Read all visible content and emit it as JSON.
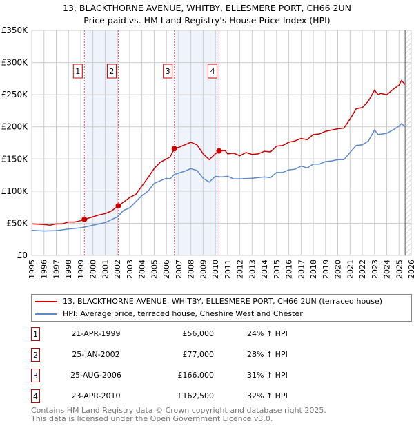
{
  "title_line1": "13, BLACKTHORNE AVENUE, WHITBY, ELLESMERE PORT, CH66 2UN",
  "title_line2": "Price paid vs. HM Land Registry's House Price Index (HPI)",
  "chart_data": {
    "type": "line",
    "xlim": [
      1995,
      2026
    ],
    "ylim": [
      0,
      350000
    ],
    "x_ticks": [
      "1995",
      "1996",
      "1997",
      "1998",
      "1999",
      "2000",
      "2001",
      "2002",
      "2003",
      "2004",
      "2005",
      "2006",
      "2007",
      "2008",
      "2009",
      "2010",
      "2011",
      "2012",
      "2013",
      "2014",
      "2015",
      "2016",
      "2017",
      "2018",
      "2019",
      "2020",
      "2021",
      "2022",
      "2023",
      "2024",
      "2025",
      "2026"
    ],
    "y_ticks": [
      {
        "v": 0,
        "label": "£0"
      },
      {
        "v": 50000,
        "label": "£50K"
      },
      {
        "v": 100000,
        "label": "£100K"
      },
      {
        "v": 150000,
        "label": "£150K"
      },
      {
        "v": 200000,
        "label": "£200K"
      },
      {
        "v": 250000,
        "label": "£250K"
      },
      {
        "v": 300000,
        "label": "£300K"
      },
      {
        "v": 350000,
        "label": "£350K"
      }
    ],
    "series": [
      {
        "name": "13, BLACKTHORNE AVENUE, WHITBY, ELLESMERE PORT, CH66 2UN (terraced house)",
        "color": "#cc0000",
        "x": [
          1995,
          1996,
          1996.5,
          1997,
          1997.5,
          1998,
          1998.5,
          1999,
          1999.3,
          2000,
          2000.5,
          2001,
          2001.5,
          2002.07,
          2002.5,
          2003,
          2003.5,
          2004,
          2004.5,
          2005,
          2005.5,
          2006,
          2006.3,
          2006.65,
          2007,
          2007.5,
          2008,
          2008.5,
          2009,
          2009.5,
          2010,
          2010.3,
          2010.8,
          2011,
          2011.5,
          2012,
          2012.5,
          2013,
          2013.5,
          2014,
          2014.5,
          2015,
          2015.5,
          2016,
          2016.5,
          2017,
          2017.5,
          2018,
          2018.5,
          2019,
          2019.5,
          2020,
          2020.5,
          2021,
          2021.5,
          2022,
          2022.5,
          2023,
          2023.3,
          2023.5,
          2024,
          2024.5,
          2025,
          2025.2,
          2025.5
        ],
        "y": [
          49000,
          48000,
          47000,
          49000,
          49000,
          52000,
          52000,
          54000,
          56000,
          60000,
          63000,
          65000,
          69000,
          77000,
          83000,
          90000,
          95000,
          108000,
          121000,
          135000,
          145000,
          150000,
          153000,
          166000,
          168000,
          172000,
          176000,
          172000,
          158000,
          149000,
          158000,
          162500,
          163000,
          158000,
          159000,
          155000,
          160000,
          157000,
          158000,
          162000,
          161000,
          170000,
          171000,
          176000,
          178000,
          182000,
          180000,
          188000,
          189000,
          193000,
          195000,
          197000,
          198000,
          212000,
          228000,
          230000,
          240000,
          257000,
          250000,
          252000,
          250000,
          258000,
          265000,
          272000,
          266000
        ]
      },
      {
        "name": "HPI: Average price, terraced house, Cheshire West and Chester",
        "color": "#5b8ad0",
        "x": [
          1995,
          1996,
          1997,
          1998,
          1999,
          1999.3,
          2000,
          2001,
          2002,
          2002.5,
          2003,
          2004,
          2004.5,
          2005,
          2005.5,
          2006,
          2006.3,
          2006.65,
          2007,
          2007.5,
          2008,
          2008.5,
          2009,
          2009.5,
          2010,
          2010.5,
          2011,
          2011.5,
          2012,
          2013,
          2014,
          2014.5,
          2015,
          2015.5,
          2016,
          2016.5,
          2017,
          2017.5,
          2018,
          2018.5,
          2019,
          2019.5,
          2020,
          2020.5,
          2021,
          2021.5,
          2022,
          2022.5,
          2023,
          2023.3,
          2024,
          2024.5,
          2025,
          2025.2,
          2025.5
        ],
        "y": [
          39000,
          38000,
          38500,
          41000,
          43000,
          44000,
          47000,
          51000,
          60000,
          70000,
          74000,
          93000,
          100000,
          112000,
          116000,
          120000,
          119000,
          126000,
          128000,
          131000,
          135000,
          132000,
          120000,
          114000,
          123000,
          122000,
          123000,
          119000,
          119000,
          120000,
          122000,
          121000,
          129000,
          129000,
          133000,
          134000,
          139000,
          136000,
          142000,
          142000,
          146000,
          147000,
          149000,
          149000,
          160000,
          171000,
          172000,
          178000,
          195000,
          188000,
          190000,
          195000,
          201000,
          205000,
          200000
        ]
      }
    ],
    "sales": [
      {
        "id": "1",
        "x": 1999.3,
        "y": 56000,
        "date": "21-APR-1999",
        "price": "£56,000",
        "hpi": "24% ↑ HPI"
      },
      {
        "id": "2",
        "x": 2002.07,
        "y": 77000,
        "date": "25-JAN-2002",
        "price": "£77,000",
        "hpi": "28% ↑ HPI"
      },
      {
        "id": "3",
        "x": 2006.65,
        "y": 166000,
        "date": "25-AUG-2006",
        "price": "£166,000",
        "hpi": "31% ↑ HPI"
      },
      {
        "id": "4",
        "x": 2010.3,
        "y": 162500,
        "date": "23-APR-2010",
        "price": "£162,500",
        "hpi": "32% ↑ HPI"
      }
    ],
    "shaded": [
      [
        1999.3,
        2002.07
      ],
      [
        2006.65,
        2010.3
      ]
    ],
    "forecast_from": 2025.5
  },
  "footer_line1": "Contains HM Land Registry data © Crown copyright and database right 2025.",
  "footer_line2": "This data is licensed under the Open Government Licence v3.0."
}
